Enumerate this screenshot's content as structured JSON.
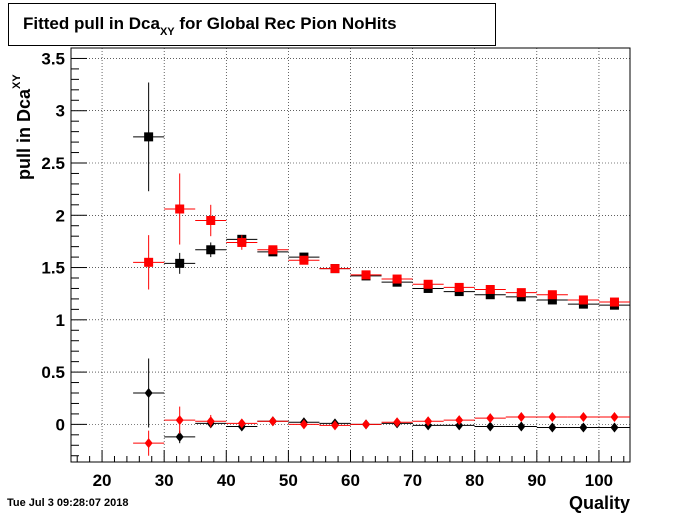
{
  "title": {
    "main_prefix": "Fitted pull in Dca",
    "main_subscript": "XY",
    "main_suffix": " for Global Rec Pion NoHits"
  },
  "timestamp": "Tue Jul  3 09:28:07 2018",
  "chart_data": {
    "type": "scatter",
    "xlabel": "Quality",
    "ylabel": "pull in Dca",
    "ylabel_subscript": "XY",
    "xlim": [
      15,
      105
    ],
    "ylim": [
      -0.36,
      3.6
    ],
    "x_ticks": [
      20,
      30,
      40,
      50,
      60,
      70,
      80,
      90,
      100
    ],
    "y_ticks": [
      0,
      0.5,
      1,
      1.5,
      2,
      2.5,
      3,
      3.5
    ],
    "x_tick_labels": [
      "20",
      "30",
      "40",
      "50",
      "60",
      "70",
      "80",
      "90",
      "100"
    ],
    "y_tick_labels": [
      "0",
      "0.5",
      "1",
      "1.5",
      "2",
      "2.5",
      "3",
      "3.5"
    ],
    "grid": true,
    "series": [
      {
        "marker": "square",
        "color": "#000000",
        "points": [
          {
            "x": 27.5,
            "y": 2.75,
            "xerr": 2.5,
            "yerr": 0.52
          },
          {
            "x": 32.5,
            "y": 1.54,
            "xerr": 2.5,
            "yerr": 0.1
          },
          {
            "x": 37.5,
            "y": 1.67,
            "xerr": 2.5,
            "yerr": 0.07
          },
          {
            "x": 42.5,
            "y": 1.77,
            "xerr": 2.5,
            "yerr": 0.04
          },
          {
            "x": 47.5,
            "y": 1.65,
            "xerr": 2.5,
            "yerr": 0.03
          },
          {
            "x": 52.5,
            "y": 1.6,
            "xerr": 2.5,
            "yerr": 0.02
          },
          {
            "x": 57.5,
            "y": 1.49,
            "xerr": 2.5,
            "yerr": 0.02
          },
          {
            "x": 62.5,
            "y": 1.42,
            "xerr": 2.5,
            "yerr": 0.02
          },
          {
            "x": 67.5,
            "y": 1.36,
            "xerr": 2.5,
            "yerr": 0.02
          },
          {
            "x": 72.5,
            "y": 1.3,
            "xerr": 2.5,
            "yerr": 0.02
          },
          {
            "x": 77.5,
            "y": 1.27,
            "xerr": 2.5,
            "yerr": 0.02
          },
          {
            "x": 82.5,
            "y": 1.24,
            "xerr": 2.5,
            "yerr": 0.02
          },
          {
            "x": 87.5,
            "y": 1.22,
            "xerr": 2.5,
            "yerr": 0.02
          },
          {
            "x": 92.5,
            "y": 1.19,
            "xerr": 2.5,
            "yerr": 0.02
          },
          {
            "x": 97.5,
            "y": 1.15,
            "xerr": 2.5,
            "yerr": 0.02
          },
          {
            "x": 102.5,
            "y": 1.14,
            "xerr": 2.5,
            "yerr": 0.02
          }
        ]
      },
      {
        "marker": "square",
        "color": "#ff0000",
        "points": [
          {
            "x": 27.5,
            "y": 1.55,
            "xerr": 2.5,
            "yerr": 0.26
          },
          {
            "x": 32.5,
            "y": 2.06,
            "xerr": 2.5,
            "yerr": 0.34
          },
          {
            "x": 37.5,
            "y": 1.95,
            "xerr": 2.5,
            "yerr": 0.15
          },
          {
            "x": 42.5,
            "y": 1.74,
            "xerr": 2.5,
            "yerr": 0.07
          },
          {
            "x": 47.5,
            "y": 1.67,
            "xerr": 2.5,
            "yerr": 0.04
          },
          {
            "x": 52.5,
            "y": 1.57,
            "xerr": 2.5,
            "yerr": 0.03
          },
          {
            "x": 57.5,
            "y": 1.49,
            "xerr": 2.5,
            "yerr": 0.02
          },
          {
            "x": 62.5,
            "y": 1.43,
            "xerr": 2.5,
            "yerr": 0.02
          },
          {
            "x": 67.5,
            "y": 1.39,
            "xerr": 2.5,
            "yerr": 0.02
          },
          {
            "x": 72.5,
            "y": 1.34,
            "xerr": 2.5,
            "yerr": 0.02
          },
          {
            "x": 77.5,
            "y": 1.31,
            "xerr": 2.5,
            "yerr": 0.02
          },
          {
            "x": 82.5,
            "y": 1.29,
            "xerr": 2.5,
            "yerr": 0.02
          },
          {
            "x": 87.5,
            "y": 1.26,
            "xerr": 2.5,
            "yerr": 0.02
          },
          {
            "x": 92.5,
            "y": 1.24,
            "xerr": 2.5,
            "yerr": 0.02
          },
          {
            "x": 97.5,
            "y": 1.19,
            "xerr": 2.5,
            "yerr": 0.02
          },
          {
            "x": 102.5,
            "y": 1.17,
            "xerr": 2.5,
            "yerr": 0.02
          }
        ]
      },
      {
        "marker": "diamond",
        "color": "#000000",
        "points": [
          {
            "x": 27.5,
            "y": 0.3,
            "xerr": 2.5,
            "yerr": 0.33
          },
          {
            "x": 32.5,
            "y": -0.12,
            "xerr": 2.5,
            "yerr": 0.06
          },
          {
            "x": 37.5,
            "y": 0.01,
            "xerr": 2.5,
            "yerr": 0.04
          },
          {
            "x": 42.5,
            "y": -0.02,
            "xerr": 2.5,
            "yerr": 0.03
          },
          {
            "x": 47.5,
            "y": 0.03,
            "xerr": 2.5,
            "yerr": 0.02
          },
          {
            "x": 52.5,
            "y": 0.02,
            "xerr": 2.5,
            "yerr": 0.02
          },
          {
            "x": 57.5,
            "y": 0.01,
            "xerr": 2.5,
            "yerr": 0.02
          },
          {
            "x": 62.5,
            "y": 0.0,
            "xerr": 2.5,
            "yerr": 0.02
          },
          {
            "x": 67.5,
            "y": 0.01,
            "xerr": 2.5,
            "yerr": 0.02
          },
          {
            "x": 72.5,
            "y": -0.01,
            "xerr": 2.5,
            "yerr": 0.02
          },
          {
            "x": 77.5,
            "y": -0.01,
            "xerr": 2.5,
            "yerr": 0.02
          },
          {
            "x": 82.5,
            "y": -0.02,
            "xerr": 2.5,
            "yerr": 0.02
          },
          {
            "x": 87.5,
            "y": -0.02,
            "xerr": 2.5,
            "yerr": 0.02
          },
          {
            "x": 92.5,
            "y": -0.03,
            "xerr": 2.5,
            "yerr": 0.02
          },
          {
            "x": 97.5,
            "y": -0.03,
            "xerr": 2.5,
            "yerr": 0.02
          },
          {
            "x": 102.5,
            "y": -0.03,
            "xerr": 2.5,
            "yerr": 0.02
          }
        ]
      },
      {
        "marker": "diamond",
        "color": "#ff0000",
        "points": [
          {
            "x": 27.5,
            "y": -0.18,
            "xerr": 2.5,
            "yerr": 0.12
          },
          {
            "x": 32.5,
            "y": 0.04,
            "xerr": 2.5,
            "yerr": 0.13
          },
          {
            "x": 37.5,
            "y": 0.03,
            "xerr": 2.5,
            "yerr": 0.06
          },
          {
            "x": 42.5,
            "y": 0.01,
            "xerr": 2.5,
            "yerr": 0.03
          },
          {
            "x": 47.5,
            "y": 0.03,
            "xerr": 2.5,
            "yerr": 0.02
          },
          {
            "x": 52.5,
            "y": 0.0,
            "xerr": 2.5,
            "yerr": 0.02
          },
          {
            "x": 57.5,
            "y": -0.01,
            "xerr": 2.5,
            "yerr": 0.02
          },
          {
            "x": 62.5,
            "y": 0.0,
            "xerr": 2.5,
            "yerr": 0.02
          },
          {
            "x": 67.5,
            "y": 0.02,
            "xerr": 2.5,
            "yerr": 0.02
          },
          {
            "x": 72.5,
            "y": 0.03,
            "xerr": 2.5,
            "yerr": 0.02
          },
          {
            "x": 77.5,
            "y": 0.04,
            "xerr": 2.5,
            "yerr": 0.02
          },
          {
            "x": 82.5,
            "y": 0.06,
            "xerr": 2.5,
            "yerr": 0.02
          },
          {
            "x": 87.5,
            "y": 0.07,
            "xerr": 2.5,
            "yerr": 0.02
          },
          {
            "x": 92.5,
            "y": 0.07,
            "xerr": 2.5,
            "yerr": 0.02
          },
          {
            "x": 97.5,
            "y": 0.07,
            "xerr": 2.5,
            "yerr": 0.02
          },
          {
            "x": 102.5,
            "y": 0.07,
            "xerr": 2.5,
            "yerr": 0.02
          }
        ]
      }
    ]
  }
}
